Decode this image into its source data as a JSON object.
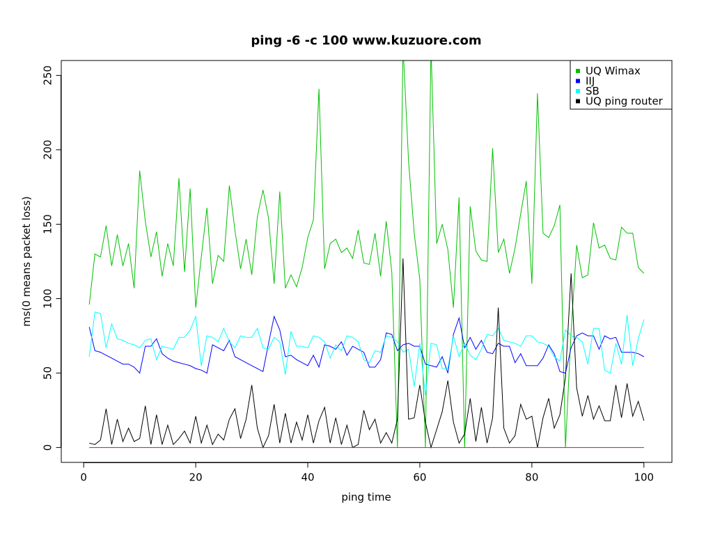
{
  "chart_data": {
    "type": "line",
    "title": "ping -6 -c 100 www.kuzuore.com",
    "xlabel": "ping time",
    "ylabel": "ms(0 means packet loss)",
    "xlim": [
      -4,
      105
    ],
    "ylim": [
      -10,
      260
    ],
    "xticks": [
      0,
      20,
      40,
      60,
      80,
      100
    ],
    "yticks": [
      0,
      50,
      100,
      150,
      200,
      250
    ],
    "grid": false,
    "legend_position": "top-right",
    "x": [
      1,
      2,
      3,
      4,
      5,
      6,
      7,
      8,
      9,
      10,
      11,
      12,
      13,
      14,
      15,
      16,
      17,
      18,
      19,
      20,
      21,
      22,
      23,
      24,
      25,
      26,
      27,
      28,
      29,
      30,
      31,
      32,
      33,
      34,
      35,
      36,
      37,
      38,
      39,
      40,
      41,
      42,
      43,
      44,
      45,
      46,
      47,
      48,
      49,
      50,
      51,
      52,
      53,
      54,
      55,
      56,
      57,
      58,
      59,
      60,
      61,
      62,
      63,
      64,
      65,
      66,
      67,
      68,
      69,
      70,
      71,
      72,
      73,
      74,
      75,
      76,
      77,
      78,
      79,
      80,
      81,
      82,
      83,
      84,
      85,
      86,
      87,
      88,
      89,
      90,
      91,
      92,
      93,
      94,
      95,
      96,
      97,
      98,
      99,
      100
    ],
    "series": [
      {
        "name": "UQ Wimax",
        "color": "#00c000",
        "values": [
          96,
          130,
          128,
          149,
          122,
          143,
          122,
          137,
          107,
          186,
          152,
          128,
          145,
          115,
          137,
          122,
          181,
          118,
          174,
          94,
          128,
          161,
          110,
          129,
          125,
          176,
          146,
          120,
          140,
          116,
          155,
          173,
          154,
          110,
          172,
          107,
          116,
          108,
          121,
          141,
          153,
          241,
          120,
          137,
          140,
          131,
          134,
          127,
          146,
          124,
          123,
          144,
          115,
          152,
          118,
          0,
          270,
          192,
          144,
          113,
          0,
          270,
          137,
          150,
          133,
          94,
          168,
          0,
          162,
          132,
          126,
          125,
          201,
          131,
          140,
          117,
          134,
          157,
          179,
          110,
          238,
          144,
          141,
          149,
          163,
          0,
          78,
          136,
          114,
          116,
          151,
          134,
          136,
          127,
          126,
          148,
          144,
          144,
          121,
          117
        ]
      },
      {
        "name": "IIJ",
        "color": "#0000ff",
        "values": [
          81,
          65,
          64,
          62,
          60,
          58,
          56,
          56,
          54,
          50,
          68,
          68,
          73,
          63,
          60,
          58,
          57,
          56,
          55,
          53,
          52,
          50,
          69,
          67,
          65,
          72,
          61,
          59,
          57,
          55,
          53,
          51,
          70,
          88,
          79,
          61,
          62,
          59,
          57,
          55,
          62,
          54,
          69,
          68,
          66,
          71,
          62,
          68,
          66,
          64,
          54,
          54,
          59,
          77,
          76,
          65,
          69,
          70,
          68,
          68,
          56,
          55,
          54,
          61,
          50,
          76,
          87,
          67,
          74,
          66,
          72,
          64,
          63,
          70,
          68,
          68,
          57,
          63,
          55,
          55,
          55,
          60,
          69,
          63,
          51,
          50,
          67,
          75,
          77,
          75,
          75,
          66,
          75,
          73,
          74,
          64,
          64,
          64,
          63,
          61
        ]
      },
      {
        "name": "SB",
        "color": "#00ffff",
        "values": [
          61,
          91,
          90,
          67,
          83,
          73,
          72,
          70,
          69,
          67,
          72,
          73,
          59,
          68,
          67,
          66,
          74,
          74,
          79,
          88,
          55,
          75,
          74,
          71,
          80,
          71,
          67,
          75,
          74,
          74,
          80,
          67,
          66,
          74,
          71,
          49,
          78,
          68,
          68,
          67,
          75,
          74,
          71,
          60,
          69,
          65,
          75,
          74,
          71,
          59,
          57,
          65,
          64,
          75,
          74,
          71,
          64,
          66,
          41,
          70,
          35,
          70,
          69,
          53,
          53,
          75,
          61,
          70,
          62,
          59,
          66,
          76,
          75,
          80,
          72,
          71,
          70,
          68,
          75,
          75,
          71,
          70,
          68,
          61,
          58,
          79,
          75,
          74,
          71,
          56,
          80,
          80,
          52,
          50,
          70,
          56,
          89,
          55,
          73,
          86
        ]
      },
      {
        "name": "UQ ping router",
        "color": "#000000",
        "values": [
          3,
          2,
          5,
          26,
          2,
          19,
          4,
          13,
          4,
          6,
          28,
          2,
          22,
          2,
          15,
          2,
          6,
          11,
          3,
          21,
          3,
          15,
          2,
          9,
          5,
          19,
          26,
          6,
          19,
          42,
          13,
          0,
          8,
          29,
          3,
          23,
          3,
          17,
          5,
          22,
          3,
          18,
          27,
          3,
          20,
          2,
          15,
          0,
          2,
          25,
          12,
          19,
          3,
          10,
          3,
          19,
          127,
          19,
          20,
          42,
          17,
          0,
          12,
          24,
          45,
          17,
          3,
          9,
          33,
          4,
          27,
          3,
          20,
          94,
          13,
          3,
          8,
          29,
          19,
          21,
          0,
          20,
          33,
          13,
          22,
          47,
          117,
          40,
          21,
          35,
          19,
          28,
          18,
          18,
          42,
          20,
          43,
          21,
          31,
          18
        ]
      },
      {
        "color": "#ff0000",
        "values": [
          0,
          0,
          0,
          0,
          0,
          0,
          0,
          0,
          0,
          0,
          0,
          0,
          0,
          0,
          0,
          0,
          0,
          0,
          0,
          0,
          0,
          0,
          0,
          0,
          0,
          0,
          0,
          0,
          0,
          0,
          0,
          0,
          0,
          0,
          0,
          0,
          0,
          0,
          0,
          0,
          0,
          0,
          0,
          0,
          0,
          0,
          0,
          0,
          0,
          0,
          0,
          0,
          0,
          0,
          0,
          0,
          0,
          0,
          0,
          0,
          0,
          0,
          0,
          0,
          0,
          0,
          0,
          0,
          0,
          0,
          0,
          0,
          0,
          0,
          0,
          0,
          0,
          0,
          0,
          0,
          0,
          0,
          0,
          0,
          0,
          0,
          0,
          0,
          0,
          0,
          0,
          0,
          0,
          0,
          0,
          0,
          0,
          0,
          0,
          0
        ]
      }
    ]
  }
}
